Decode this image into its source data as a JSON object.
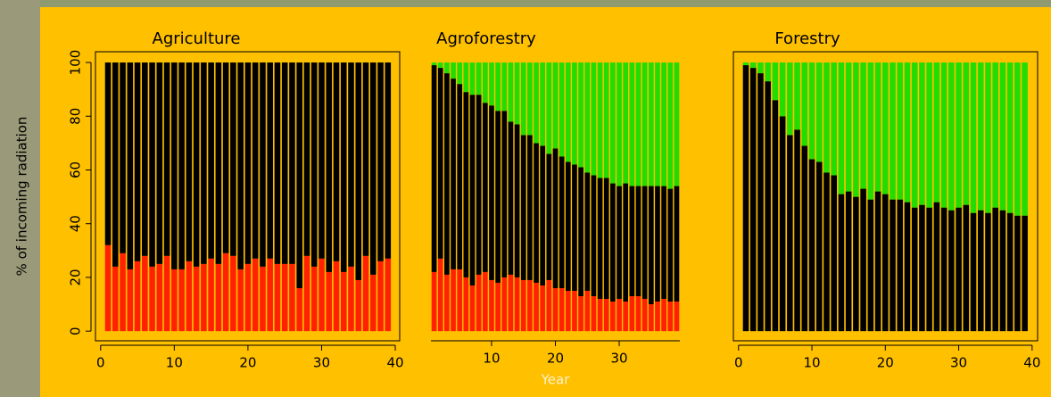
{
  "chart_data": [
    {
      "type": "bar",
      "stacked": true,
      "title": "Agriculture",
      "ylabel": "% of incoming radiation",
      "x": [
        1,
        2,
        3,
        4,
        5,
        6,
        7,
        8,
        9,
        10,
        11,
        12,
        13,
        14,
        15,
        16,
        17,
        18,
        19,
        20,
        21,
        22,
        23,
        24,
        25,
        26,
        27,
        28,
        29,
        30,
        31,
        32,
        33,
        34,
        35,
        36,
        37,
        38,
        39
      ],
      "xlim": [
        -0.7,
        40.6
      ],
      "xticks": [
        0,
        10,
        20,
        30,
        40
      ],
      "ylim": [
        -3.6,
        104
      ],
      "yticks": [
        0,
        20,
        40,
        60,
        80,
        100
      ],
      "box": true,
      "series": [
        {
          "color": "#ff2200",
          "values": [
            32,
            24,
            29,
            23,
            26,
            28,
            24,
            25,
            28,
            23,
            23,
            26,
            24,
            25,
            27,
            25,
            29,
            28,
            23,
            25,
            27,
            24,
            27,
            25,
            25,
            25,
            16,
            28,
            24,
            27,
            22,
            26,
            22,
            24,
            19,
            28,
            21,
            26,
            27
          ]
        },
        {
          "color": "#000000",
          "values": [
            68,
            76,
            71,
            77,
            74,
            72,
            76,
            75,
            72,
            77,
            77,
            74,
            76,
            75,
            73,
            75,
            71,
            72,
            77,
            75,
            73,
            76,
            73,
            75,
            75,
            75,
            84,
            72,
            76,
            73,
            78,
            74,
            78,
            76,
            81,
            72,
            79,
            74,
            73
          ]
        }
      ]
    },
    {
      "type": "bar",
      "stacked": true,
      "title": "Agroforestry",
      "xlabel": "Year",
      "x": [
        1,
        2,
        3,
        4,
        5,
        6,
        7,
        8,
        9,
        10,
        11,
        12,
        13,
        14,
        15,
        16,
        17,
        18,
        19,
        20,
        21,
        22,
        23,
        24,
        25,
        26,
        27,
        28,
        29,
        30,
        31,
        32,
        33,
        34,
        35,
        36,
        37,
        38,
        39
      ],
      "xlim": [
        0.5,
        39.5
      ],
      "xticks": [
        10,
        20,
        30
      ],
      "ylim": [
        -3.6,
        104
      ],
      "box": false,
      "series": [
        {
          "color": "#ff2200",
          "values": [
            22,
            27,
            21,
            23,
            23,
            20,
            17,
            21,
            22,
            19,
            18,
            20,
            21,
            20,
            19,
            19,
            18,
            17,
            19,
            16,
            16,
            15,
            15,
            13,
            15,
            13,
            12,
            12,
            11,
            12,
            11,
            13,
            13,
            12,
            10,
            11,
            12,
            11,
            11
          ]
        },
        {
          "color": "#000000",
          "values": [
            77,
            71,
            75,
            71,
            69,
            69,
            71,
            67,
            63,
            65,
            64,
            62,
            57,
            57,
            54,
            54,
            52,
            52,
            47,
            52,
            49,
            48,
            47,
            48,
            44,
            45,
            45,
            45,
            44,
            42,
            44,
            41,
            41,
            42,
            44,
            43,
            42,
            42,
            43
          ]
        },
        {
          "color": "#22dd00",
          "values": [
            1,
            2,
            4,
            6,
            8,
            11,
            12,
            12,
            15,
            16,
            18,
            18,
            22,
            23,
            27,
            27,
            30,
            31,
            34,
            32,
            35,
            37,
            38,
            39,
            41,
            42,
            43,
            43,
            45,
            46,
            45,
            46,
            46,
            46,
            46,
            46,
            46,
            47,
            46
          ]
        }
      ]
    },
    {
      "type": "bar",
      "stacked": true,
      "title": "Forestry",
      "x": [
        1,
        2,
        3,
        4,
        5,
        6,
        7,
        8,
        9,
        10,
        11,
        12,
        13,
        14,
        15,
        16,
        17,
        18,
        19,
        20,
        21,
        22,
        23,
        24,
        25,
        26,
        27,
        28,
        29,
        30,
        31,
        32,
        33,
        34,
        35,
        36,
        37,
        38,
        39
      ],
      "xlim": [
        -0.7,
        40.75
      ],
      "xticks": [
        0,
        10,
        20,
        30,
        40
      ],
      "ylim": [
        -3.6,
        104
      ],
      "box": true,
      "series": [
        {
          "color": "#000000",
          "values": [
            99,
            98,
            96,
            93,
            86,
            80,
            73,
            75,
            69,
            64,
            63,
            59,
            58,
            51,
            52,
            50,
            53,
            49,
            52,
            51,
            49,
            49,
            48,
            46,
            47,
            46,
            48,
            46,
            45,
            46,
            47,
            44,
            45,
            44,
            46,
            45,
            44,
            43,
            43
          ]
        },
        {
          "color": "#22dd00",
          "values": [
            1,
            2,
            4,
            7,
            14,
            20,
            27,
            25,
            31,
            36,
            37,
            41,
            42,
            49,
            48,
            50,
            47,
            51,
            48,
            49,
            51,
            51,
            52,
            54,
            53,
            54,
            52,
            54,
            55,
            54,
            53,
            56,
            55,
            56,
            54,
            55,
            56,
            57,
            57
          ]
        }
      ]
    }
  ]
}
